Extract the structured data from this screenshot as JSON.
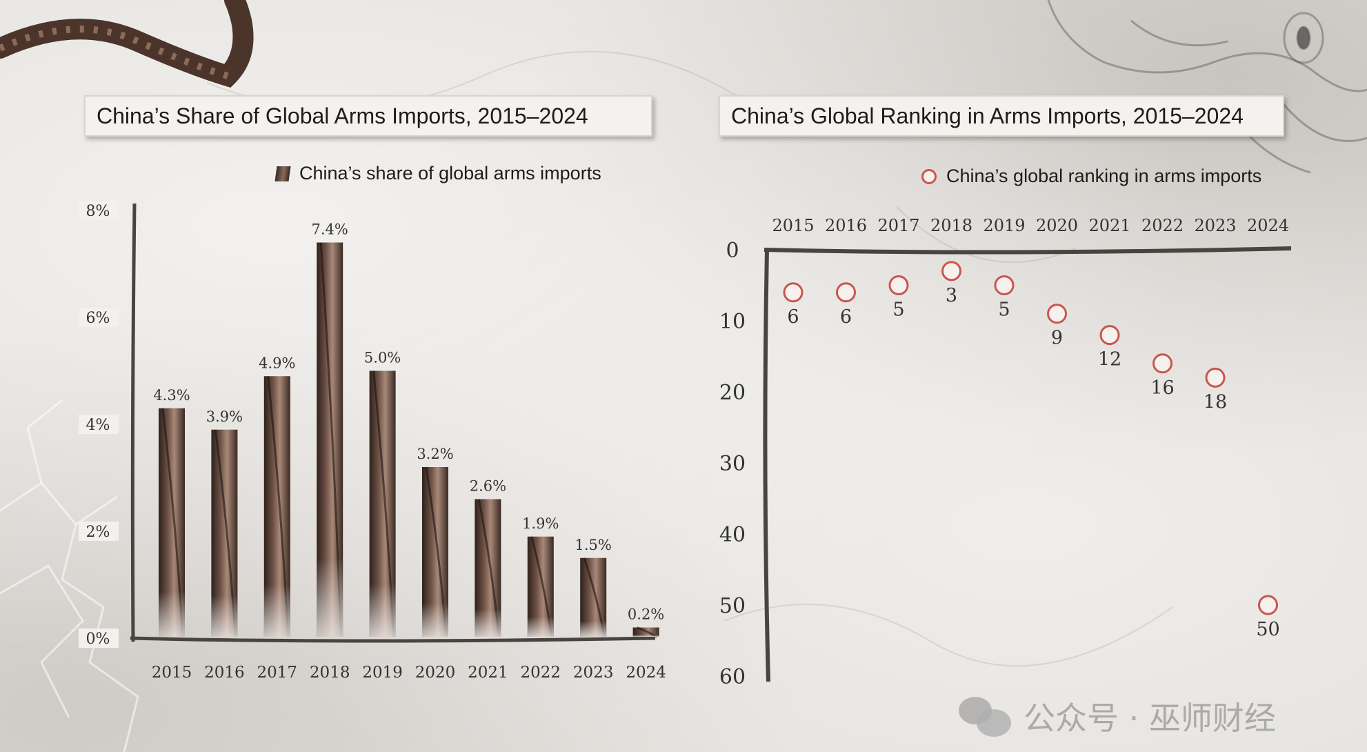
{
  "chart_data": [
    {
      "type": "bar",
      "title": "China’s Share of Global Arms Imports, 2015–2024",
      "legend": "China’s share of global arms imports",
      "categories": [
        "2015",
        "2016",
        "2017",
        "2018",
        "2019",
        "2020",
        "2021",
        "2022",
        "2023",
        "2024"
      ],
      "values": [
        4.3,
        3.9,
        4.9,
        7.4,
        5.0,
        3.2,
        2.6,
        1.9,
        1.5,
        0.2
      ],
      "value_labels": [
        "4.3%",
        "3.9%",
        "4.9%",
        "7.4%",
        "5.0%",
        "3.2%",
        "2.6%",
        "1.9%",
        "1.5%",
        "0.2%"
      ],
      "y_ticks": [
        "0%",
        "2%",
        "4%",
        "6%",
        "8%"
      ],
      "ylim": [
        0,
        8
      ],
      "unit": "%",
      "bar_color": "#4a352c",
      "legend_position": "top-right"
    },
    {
      "type": "scatter",
      "title": "China’s Global Ranking in Arms Imports, 2015–2024",
      "legend": "China’s global ranking in arms imports",
      "categories": [
        "2015",
        "2016",
        "2017",
        "2018",
        "2019",
        "2020",
        "2021",
        "2022",
        "2023",
        "2024"
      ],
      "values": [
        6,
        6,
        5,
        3,
        5,
        9,
        12,
        16,
        18,
        50
      ],
      "y_ticks": [
        "0",
        "10",
        "20",
        "30",
        "40",
        "50",
        "60"
      ],
      "ylim": [
        0,
        60
      ],
      "y_inverted": true,
      "x_axis_position": "top",
      "marker_color": "#c9564f",
      "legend_position": "top-right"
    }
  ],
  "watermark": "公众号 · 巫师财经",
  "watermark_icon": "wechat-icon"
}
